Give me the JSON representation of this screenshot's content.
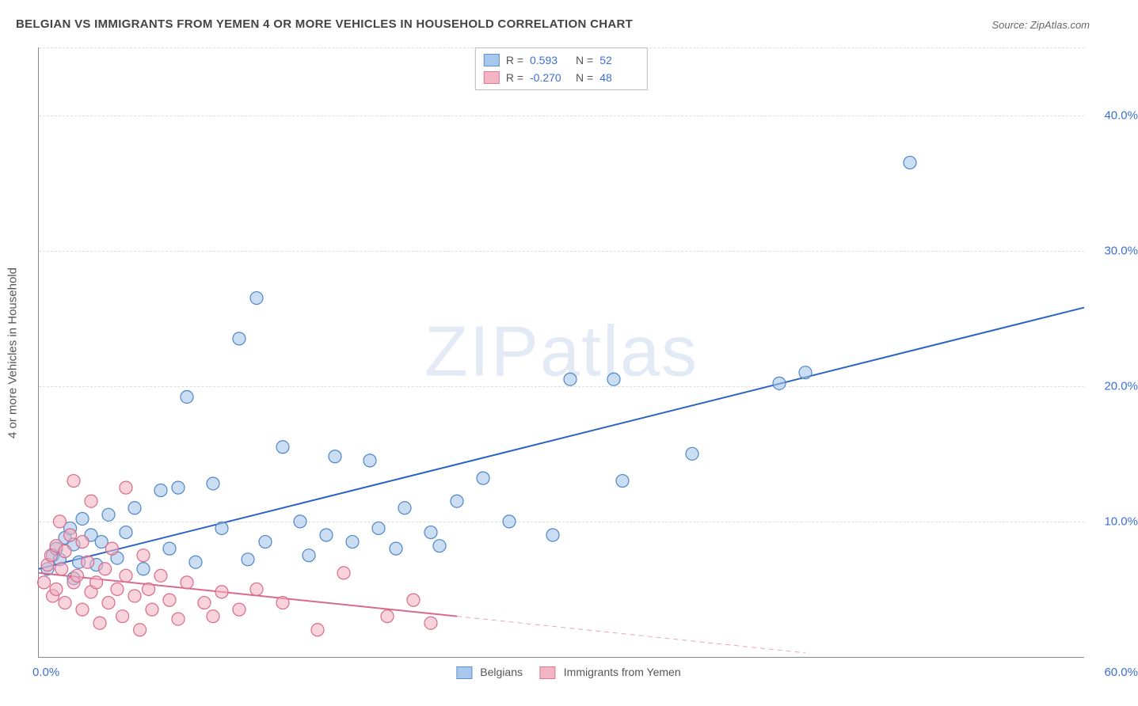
{
  "title": "BELGIAN VS IMMIGRANTS FROM YEMEN 4 OR MORE VEHICLES IN HOUSEHOLD CORRELATION CHART",
  "source": "Source: ZipAtlas.com",
  "watermark_a": "ZIP",
  "watermark_b": "atlas",
  "ylabel": "4 or more Vehicles in Household",
  "chart": {
    "type": "scatter",
    "xlim": [
      0,
      60
    ],
    "ylim": [
      0,
      45
    ],
    "yticks": [
      10,
      20,
      30,
      40
    ],
    "ytick_labels": [
      "10.0%",
      "20.0%",
      "30.0%",
      "40.0%"
    ],
    "xtick_left": "0.0%",
    "xtick_right": "60.0%",
    "background": "#ffffff",
    "grid_color": "#dddddd",
    "axis_color": "#888888",
    "marker_radius": 8,
    "marker_stroke_width": 1.2,
    "trend_width": 2
  },
  "series": [
    {
      "name": "Belgians",
      "fill": "#9fc1ea",
      "stroke": "#4e86c6",
      "fill_opacity": 0.55,
      "R": "0.593",
      "N": "52",
      "trend": {
        "x1": 0,
        "y1": 6.5,
        "x2": 60,
        "y2": 25.8,
        "color": "#2b64c4",
        "dash": ""
      },
      "points": [
        [
          0.5,
          6.5
        ],
        [
          0.8,
          7.5
        ],
        [
          1.0,
          8.0
        ],
        [
          1.2,
          7.2
        ],
        [
          1.5,
          8.8
        ],
        [
          1.8,
          9.5
        ],
        [
          2.0,
          8.3
        ],
        [
          2.3,
          7.0
        ],
        [
          2.5,
          10.2
        ],
        [
          3.0,
          9.0
        ],
        [
          3.3,
          6.8
        ],
        [
          3.6,
          8.5
        ],
        [
          4.0,
          10.5
        ],
        [
          4.5,
          7.3
        ],
        [
          5.0,
          9.2
        ],
        [
          5.5,
          11.0
        ],
        [
          6.0,
          6.5
        ],
        [
          7.0,
          12.3
        ],
        [
          7.5,
          8.0
        ],
        [
          8.0,
          12.5
        ],
        [
          8.5,
          19.2
        ],
        [
          9.0,
          7.0
        ],
        [
          10.0,
          12.8
        ],
        [
          10.5,
          9.5
        ],
        [
          11.5,
          23.5
        ],
        [
          12.0,
          7.2
        ],
        [
          12.5,
          26.5
        ],
        [
          13.0,
          8.5
        ],
        [
          14.0,
          15.5
        ],
        [
          15.0,
          10.0
        ],
        [
          15.5,
          7.5
        ],
        [
          16.5,
          9.0
        ],
        [
          17.0,
          14.8
        ],
        [
          18.0,
          8.5
        ],
        [
          19.0,
          14.5
        ],
        [
          19.5,
          9.5
        ],
        [
          20.5,
          8.0
        ],
        [
          21.0,
          11.0
        ],
        [
          22.5,
          9.2
        ],
        [
          23.0,
          8.2
        ],
        [
          24.0,
          11.5
        ],
        [
          25.5,
          13.2
        ],
        [
          27.0,
          10.0
        ],
        [
          29.5,
          9.0
        ],
        [
          30.5,
          20.5
        ],
        [
          33.5,
          13.0
        ],
        [
          37.5,
          15.0
        ],
        [
          42.5,
          20.2
        ],
        [
          44.0,
          21.0
        ],
        [
          50.0,
          36.5
        ],
        [
          33.0,
          20.5
        ],
        [
          2.0,
          5.8
        ]
      ]
    },
    {
      "name": "Immigrants from Yemen",
      "fill": "#f2aebe",
      "stroke": "#d86a8c",
      "fill_opacity": 0.55,
      "R": "-0.270",
      "N": "48",
      "trend": {
        "x1": 0,
        "y1": 6.2,
        "x2": 24,
        "y2": 3.0,
        "color": "#d86a8c",
        "dash": "",
        "ext_x2": 44,
        "ext_y2": 0.3,
        "ext_dash": "6,5"
      },
      "points": [
        [
          0.3,
          5.5
        ],
        [
          0.5,
          6.8
        ],
        [
          0.7,
          7.5
        ],
        [
          0.8,
          4.5
        ],
        [
          1.0,
          8.2
        ],
        [
          1.0,
          5.0
        ],
        [
          1.2,
          10.0
        ],
        [
          1.3,
          6.5
        ],
        [
          1.5,
          7.8
        ],
        [
          1.5,
          4.0
        ],
        [
          1.8,
          9.0
        ],
        [
          2.0,
          5.5
        ],
        [
          2.0,
          13.0
        ],
        [
          2.2,
          6.0
        ],
        [
          2.5,
          8.5
        ],
        [
          2.5,
          3.5
        ],
        [
          2.8,
          7.0
        ],
        [
          3.0,
          4.8
        ],
        [
          3.0,
          11.5
        ],
        [
          3.3,
          5.5
        ],
        [
          3.5,
          2.5
        ],
        [
          3.8,
          6.5
        ],
        [
          4.0,
          4.0
        ],
        [
          4.2,
          8.0
        ],
        [
          4.5,
          5.0
        ],
        [
          4.8,
          3.0
        ],
        [
          5.0,
          12.5
        ],
        [
          5.0,
          6.0
        ],
        [
          5.5,
          4.5
        ],
        [
          5.8,
          2.0
        ],
        [
          6.0,
          7.5
        ],
        [
          6.3,
          5.0
        ],
        [
          6.5,
          3.5
        ],
        [
          7.0,
          6.0
        ],
        [
          7.5,
          4.2
        ],
        [
          8.0,
          2.8
        ],
        [
          8.5,
          5.5
        ],
        [
          9.5,
          4.0
        ],
        [
          10.0,
          3.0
        ],
        [
          10.5,
          4.8
        ],
        [
          11.5,
          3.5
        ],
        [
          12.5,
          5.0
        ],
        [
          14.0,
          4.0
        ],
        [
          16.0,
          2.0
        ],
        [
          17.5,
          6.2
        ],
        [
          20.0,
          3.0
        ],
        [
          21.5,
          4.2
        ],
        [
          22.5,
          2.5
        ]
      ]
    }
  ],
  "legend_top": {
    "r_label": "R =",
    "n_label": "N ="
  }
}
